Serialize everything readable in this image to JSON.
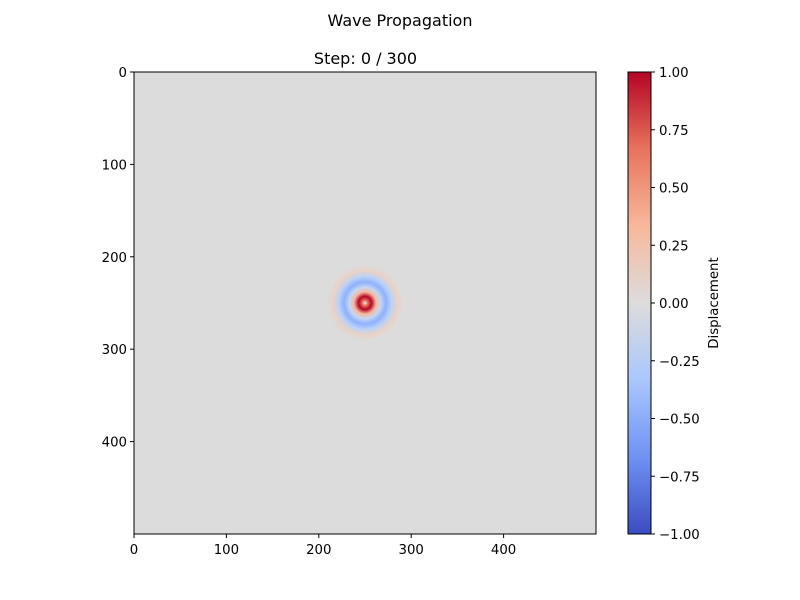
{
  "figure_title": "Wave Propagation",
  "chart_data": {
    "type": "heatmap",
    "title": "Step: 0 / 300",
    "xlabel": "",
    "ylabel": "",
    "xlim": [
      0,
      500
    ],
    "ylim": [
      500,
      0
    ],
    "x_ticks": [
      0,
      100,
      200,
      300,
      400
    ],
    "y_ticks": [
      0,
      100,
      200,
      300,
      400
    ],
    "grid_size": 500,
    "colormap": "coolwarm",
    "source": {
      "center": [
        250,
        250
      ],
      "peak_value": 1.0,
      "trough_value": -0.55,
      "outer_ring_value": 0.06
    },
    "colorbar": {
      "label": "Displacement",
      "range": [
        -1.0,
        1.0
      ],
      "ticks": [
        "1.00",
        "0.75",
        "0.50",
        "0.25",
        "0.00",
        "−0.25",
        "−0.50",
        "−0.75",
        "−1.00"
      ],
      "tick_values": [
        1.0,
        0.75,
        0.5,
        0.25,
        0.0,
        -0.25,
        -0.5,
        -0.75,
        -1.0
      ],
      "colors": [
        "#3b4cc0",
        "#6f92f3",
        "#aac7fd",
        "#dddcdc",
        "#f7b89c",
        "#e7745b",
        "#b40426"
      ]
    }
  }
}
